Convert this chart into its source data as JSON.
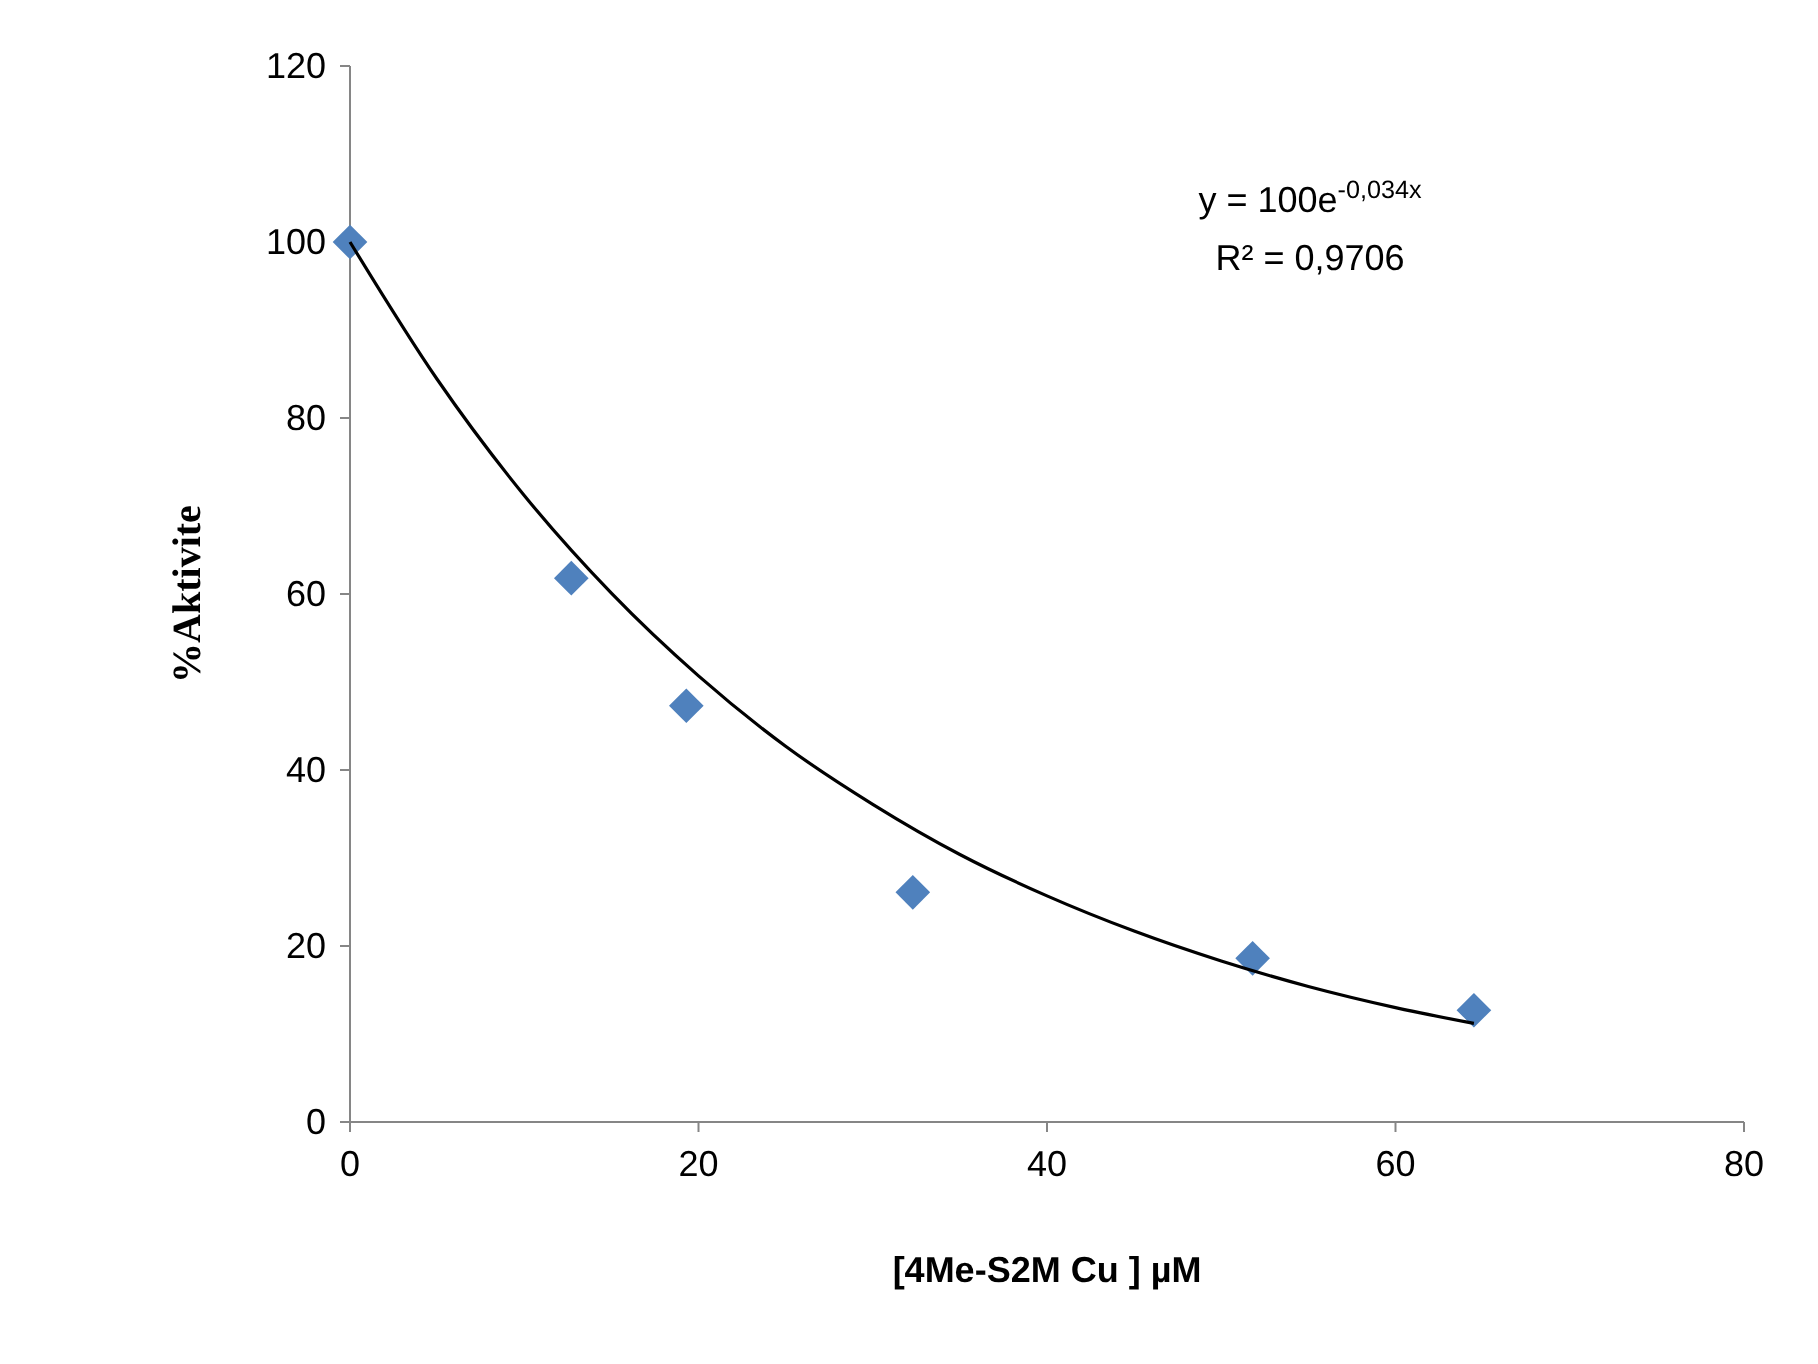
{
  "chart_data": {
    "type": "scatter",
    "xlabel": "[4Me-S2M Cu ] µM",
    "ylabel": "%Aktivite",
    "xlim": [
      0,
      80
    ],
    "xticks": [
      0,
      20,
      40,
      60,
      80
    ],
    "ylim": [
      0,
      120
    ],
    "yticks": [
      0,
      20,
      40,
      60,
      80,
      100,
      120
    ],
    "grid": false,
    "marker": "diamond",
    "series": [
      {
        "color": "#4f81bd",
        "x": [
          0,
          12.7,
          19.3,
          32.3,
          51.8,
          64.5
        ],
        "values": [
          100,
          61.8,
          47.3,
          26.1,
          18.6,
          12.7
        ]
      },
      {
        "type": "line",
        "color": "#000000",
        "marker": "none",
        "line_style": "solid",
        "x": [
          0,
          5,
          10,
          15,
          20,
          25,
          30,
          35,
          40,
          45,
          50,
          55,
          60,
          64.5
        ],
        "values": [
          100,
          84.4,
          71.2,
          60.1,
          50.7,
          42.7,
          36.1,
          30.4,
          25.7,
          21.7,
          18.3,
          15.4,
          13.0,
          11.2
        ]
      }
    ],
    "annotations": [
      "y = 100e$^{-0,034x}$",
      "R² = 0,9706"
    ]
  }
}
